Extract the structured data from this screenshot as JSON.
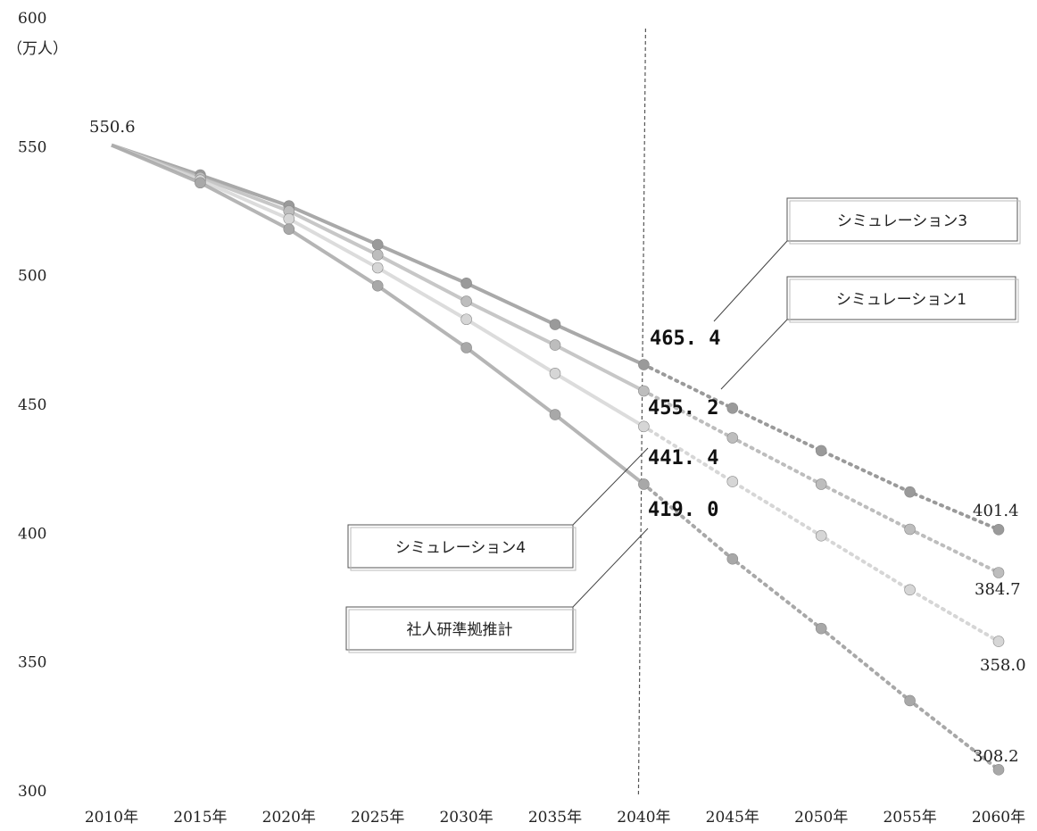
{
  "chart_data": {
    "type": "line",
    "title": "",
    "ylabel": "（万人）",
    "xlabel": "",
    "ylim": [
      300,
      600
    ],
    "yticks": [
      300,
      350,
      400,
      450,
      500,
      550,
      600
    ],
    "categories": [
      "2010年",
      "2015年",
      "2020年",
      "2025年",
      "2030年",
      "2035年",
      "2040年",
      "2045年",
      "2050年",
      "2055年",
      "2060年"
    ],
    "divider_at": "2040年",
    "start_label": "550.6",
    "series": [
      {
        "name": "シミュレーション3",
        "values": [
          550.6,
          539,
          527,
          512,
          497,
          481,
          465.4,
          448.5,
          432,
          416,
          401.4
        ],
        "mid_label": "465.4",
        "mid_label_display": "465. 4",
        "end_label": "401.4",
        "color": "#9a9a9a"
      },
      {
        "name": "シミュレーション1",
        "values": [
          550.6,
          538,
          525,
          508,
          490,
          473,
          455.2,
          437,
          419,
          401.5,
          384.7
        ],
        "mid_label": "455.2",
        "mid_label_display": "455. 2",
        "end_label": "384.7",
        "color": "#bdbdbd"
      },
      {
        "name": "シミュレーション4",
        "values": [
          550.6,
          537,
          522,
          503,
          483,
          462,
          441.4,
          420,
          399,
          378,
          358.0
        ],
        "mid_label": "441.4",
        "mid_label_display": "441. 4",
        "end_label": "358.0",
        "color": "#d6d6d6"
      },
      {
        "name": "社人研準拠推計",
        "values": [
          550.6,
          536,
          518,
          496,
          472,
          446,
          419.0,
          390,
          363,
          335,
          308.2
        ],
        "mid_label": "419.0",
        "mid_label_display": "419. 0",
        "end_label": "308.2",
        "color": "#a8a8a8"
      }
    ],
    "grid": false,
    "legend": "callout boxes"
  }
}
